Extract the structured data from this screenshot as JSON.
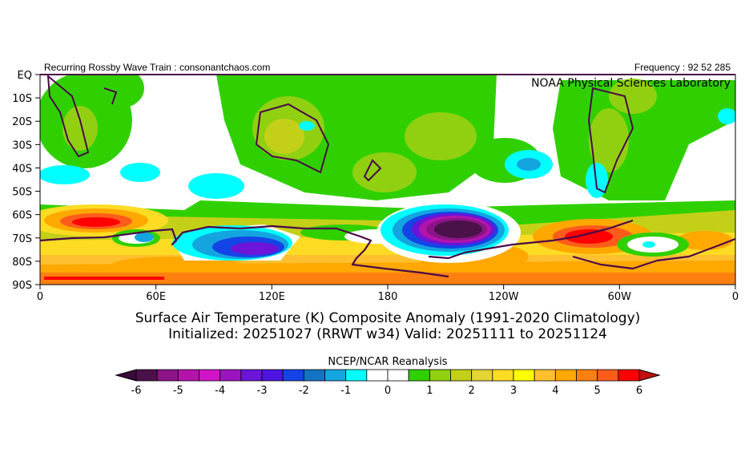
{
  "header": {
    "left": "Recurring Rossby Wave Train : consonantchaos.com",
    "right": "Frequency : 92 52 285",
    "lab": "NOAA Physical Sciences Laboratory"
  },
  "map": {
    "lat_labels": [
      "EQ",
      "10S",
      "20S",
      "30S",
      "40S",
      "50S",
      "60S",
      "70S",
      "80S",
      "90S"
    ],
    "lon_labels": [
      "0",
      "60E",
      "120E",
      "180",
      "120W",
      "60W",
      "0"
    ]
  },
  "title": {
    "line1": "Surface Air Temperature (K) Composite Anomaly (1991-2020 Climatology)",
    "line2": "Initialized: 20251027 (RRWT w34) Valid: 20251111 to 20251124"
  },
  "colorbar": {
    "source": "NCEP/NCAR Reanalysis",
    "labels": [
      "-6",
      "-5",
      "-4",
      "-3",
      "-2",
      "-1",
      "0",
      "1",
      "2",
      "3",
      "4",
      "5",
      "6"
    ],
    "colors": [
      "#4a1248",
      "#8c1488",
      "#b414ac",
      "#d214c8",
      "#9c14c0",
      "#6c14d8",
      "#4c14e0",
      "#1444e6",
      "#1474c4",
      "#14a4e0",
      "#00ffff",
      "#ffffff",
      "#ffffff",
      "#30d000",
      "#90d010",
      "#c4d018",
      "#e4d434",
      "#ffdc24",
      "#ffff00",
      "#ffc030",
      "#ffa800",
      "#ff8010",
      "#ff5c1c",
      "#ff0000"
    ],
    "under_color": "#3a0a38",
    "over_color": "#c01010"
  }
}
